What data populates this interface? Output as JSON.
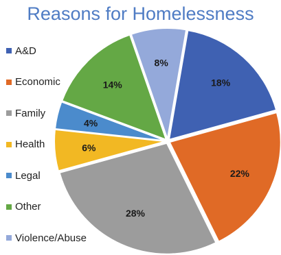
{
  "chart_data": {
    "type": "pie",
    "title": "Reasons for Homelessness",
    "legend_position": "left",
    "slices": [
      {
        "name": "A&D",
        "value": 18,
        "label": "18%",
        "color": "#3f61b2"
      },
      {
        "name": "Economic",
        "value": 22,
        "label": "22%",
        "color": "#e06a26"
      },
      {
        "name": "Family",
        "value": 28,
        "label": "28%",
        "color": "#9c9c9c"
      },
      {
        "name": "Health",
        "value": 6,
        "label": "6%",
        "color": "#f2b823"
      },
      {
        "name": "Legal",
        "value": 4,
        "label": "4%",
        "color": "#4b8bcc"
      },
      {
        "name": "Other",
        "value": 14,
        "label": "14%",
        "color": "#64a845"
      },
      {
        "name": "Violence/Abuse",
        "value": 8,
        "label": "8%",
        "color": "#94a9da"
      }
    ]
  }
}
